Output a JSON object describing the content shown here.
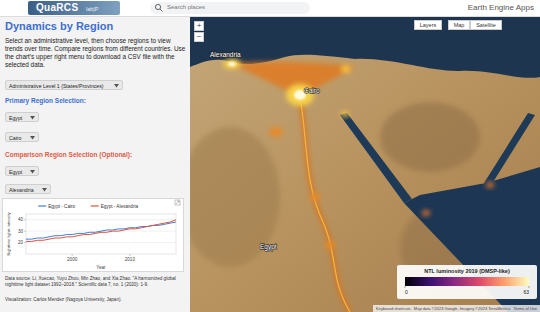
{
  "header": {
    "logo": "QuaRCS",
    "logo_sub": "lab|P",
    "search_placeholder": "Search places",
    "app_title": "Earth Engine Apps"
  },
  "panel": {
    "title": "Dynamics by Region",
    "description": "Select an administrative level, then choose regions to view trends over time. Compare regions from different countries. Use the chart's upper right menu to download a CSV file with the selected data.",
    "admin_level": "Administrative Level 1 (States/Provinces)",
    "primary_heading": "Primary Region Selection:",
    "primary_country": "Egypt",
    "primary_region": "Cairo",
    "comparison_heading": "Comparison Region Selection (Optional):",
    "comparison_country": "Egypt",
    "comparison_region": "Alexandria",
    "data_source": "Data source: Li, Xuecao, Yuyu Zhou, Min Zhao, and Xia Zhao. \"A harmonized global nighttime light dataset 1992–2018.\" Scientific data 7, no. 1 (2020): 1-9.",
    "visualization": "Visualization: Carlos Mendez (Nagoya University, Japan)."
  },
  "chart_data": {
    "type": "line",
    "x_label": "Year",
    "y_label": "Nighttime lights intensity",
    "x": [
      1992,
      1993,
      1994,
      1995,
      1996,
      1997,
      1998,
      1999,
      2000,
      2001,
      2002,
      2003,
      2004,
      2005,
      2006,
      2007,
      2008,
      2009,
      2010,
      2011,
      2012,
      2013,
      2014,
      2015,
      2016,
      2017,
      2018
    ],
    "series": [
      {
        "name": "Egypt - Cairo",
        "color": "#3f7fd9",
        "values": [
          23,
          23,
          24,
          24,
          25,
          26,
          26,
          27,
          27,
          28,
          28,
          29,
          29,
          30,
          31,
          31,
          32,
          32,
          33,
          33,
          34,
          34,
          35,
          35,
          36,
          37,
          38
        ]
      },
      {
        "name": "Egypt - Alexandria",
        "color": "#e0523a",
        "values": [
          21,
          21,
          22,
          22,
          23,
          24,
          24,
          25,
          25,
          26,
          27,
          27,
          28,
          29,
          29,
          30,
          30,
          31,
          32,
          32,
          33,
          34,
          35,
          36,
          37,
          38,
          40
        ]
      }
    ],
    "xlim": [
      1992,
      2018
    ],
    "xticks": [
      2000,
      2010
    ],
    "ylim": [
      10,
      45
    ],
    "yticks": [
      20,
      30,
      40
    ],
    "grid": true,
    "legend": "top"
  },
  "map": {
    "zoom": [
      "+",
      "−"
    ],
    "buttons": [
      "Layers",
      "Map",
      "Satellite"
    ],
    "labels": [
      "Alexandria",
      "Cairo",
      "Egypt"
    ],
    "legend": {
      "title": "NTL luminosity 2019 (DMSP-like)",
      "range": [
        0,
        63
      ],
      "ticks": [
        0,
        63
      ]
    },
    "attribution": "Keyboard shortcuts   Map data ©2023 Google, Imagery ©2023 TerraMetrics   Terms of Use"
  }
}
